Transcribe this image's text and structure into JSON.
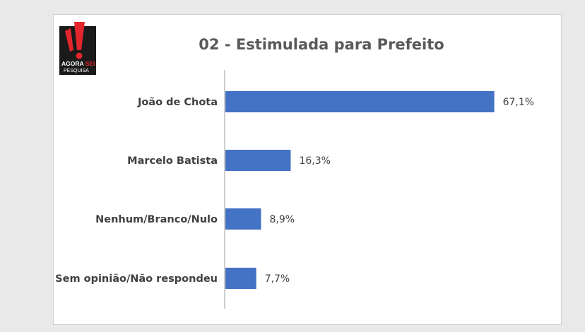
{
  "logo": {
    "word1": "AGORA",
    "word2": "SEI",
    "sub": "PESQUISA"
  },
  "colors": {
    "bar": "#4472c4",
    "axis": "#bfbfbf",
    "logo_red": "#e3262b",
    "logo_bg": "#1a1a1a"
  },
  "chart_data": {
    "type": "bar",
    "orientation": "horizontal",
    "title": "02 - Estimulada para Prefeito",
    "categories": [
      "João de Chota",
      "Marcelo Batista",
      "Nenhum/Branco/Nulo",
      "Sem opinião/Não respondeu"
    ],
    "values": [
      67.1,
      16.3,
      8.9,
      7.7
    ],
    "value_labels": [
      "67,1%",
      "16,3%",
      "8,9%",
      "7,7%"
    ],
    "unit": "%",
    "xlim": [
      0,
      70
    ],
    "grid": false,
    "legend": "none"
  }
}
